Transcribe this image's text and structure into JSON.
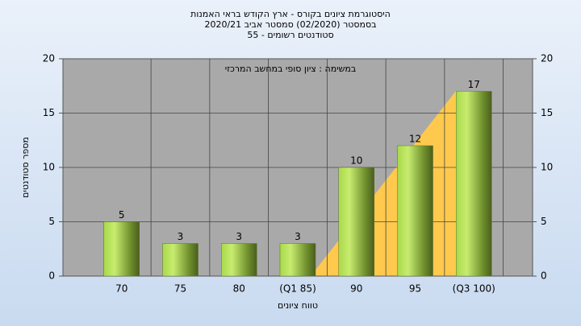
{
  "chart_data": {
    "type": "bar",
    "title": "היסטוגרמת ציונים בקורס - ארץ הקודש בראי האמנות",
    "subtitle": "בסמסטר  (02/2020)  סמסטר אביב 2020/21",
    "subtitle2": "55 - סטודנטים רשומים",
    "annotation": "במשימה : ציון סופי במחשב המרכזי",
    "xlabel": "טווח ציונים",
    "ylabel": "מספר סטודנטים",
    "categories": [
      "70",
      "75",
      "80",
      "(Q1 85)",
      "90",
      "95",
      "(Q3 100)"
    ],
    "values": [
      5,
      3,
      3,
      3,
      10,
      12,
      17
    ],
    "color": "#8fb33c",
    "ylim": [
      0,
      20
    ],
    "yticks": [
      0,
      5,
      10,
      15,
      20
    ],
    "y2lim": [
      0,
      20
    ],
    "y2ticks": [
      0,
      5,
      10,
      15,
      20
    ],
    "grid": true
  }
}
